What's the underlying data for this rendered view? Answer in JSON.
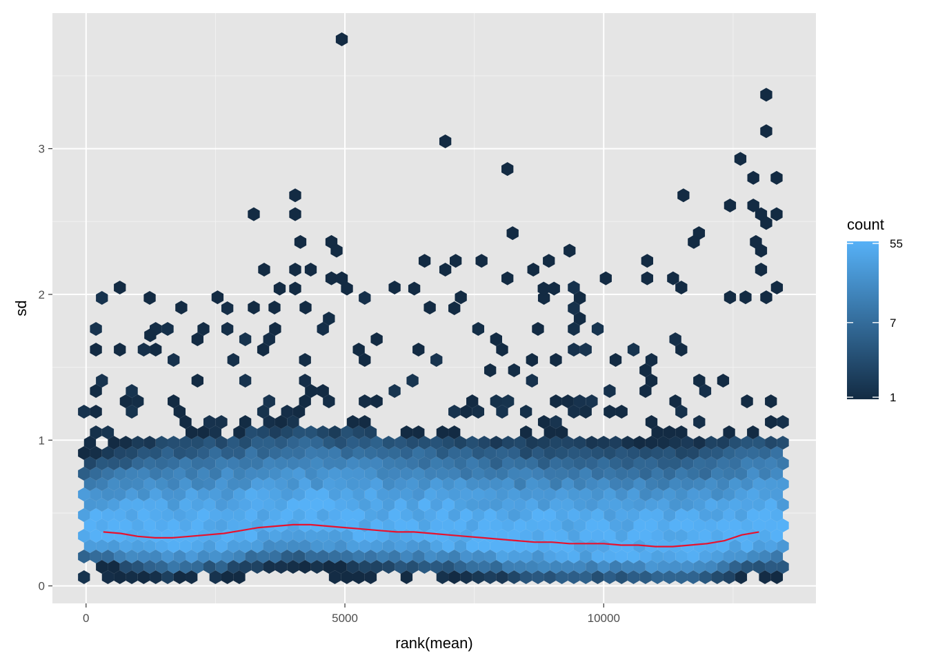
{
  "chart_data": {
    "type": "hexbin",
    "title": "",
    "xlabel": "rank(mean)",
    "ylabel": "sd",
    "xlim": [
      -650,
      14100
    ],
    "ylim": [
      -0.12,
      3.93
    ],
    "x_ticks": [
      0,
      5000,
      10000
    ],
    "x_tick_labels": [
      "0",
      "5000",
      "10000"
    ],
    "y_ticks": [
      0,
      1,
      2,
      3
    ],
    "y_tick_labels": [
      "0",
      "1",
      "2",
      "3"
    ],
    "grid": true,
    "background": "#e5e5e5",
    "legend": {
      "title": "count",
      "placement": "right",
      "scale": "log",
      "breaks": [
        1,
        7,
        55
      ],
      "labels": [
        "55",
        "7",
        "1"
      ],
      "low_color": "#132b43",
      "high_color": "#56b1f7"
    },
    "trend_line": {
      "color": "#e8112d",
      "x": [
        333,
        667,
        1000,
        1333,
        1667,
        2000,
        2333,
        2667,
        3000,
        3333,
        3667,
        4000,
        4333,
        4667,
        5000,
        5333,
        5667,
        6000,
        6333,
        6667,
        7000,
        7333,
        7667,
        8000,
        8333,
        8667,
        9000,
        9333,
        9667,
        10000,
        10333,
        10667,
        11000,
        11333,
        11667,
        12000,
        12333,
        12667,
        13000
      ],
      "y": [
        0.37,
        0.36,
        0.34,
        0.33,
        0.33,
        0.34,
        0.35,
        0.36,
        0.38,
        0.4,
        0.41,
        0.42,
        0.42,
        0.41,
        0.4,
        0.39,
        0.38,
        0.37,
        0.37,
        0.36,
        0.35,
        0.34,
        0.33,
        0.32,
        0.31,
        0.3,
        0.3,
        0.29,
        0.29,
        0.29,
        0.28,
        0.28,
        0.27,
        0.27,
        0.28,
        0.29,
        0.31,
        0.35,
        0.37
      ]
    },
    "outlier_hexes": [
      [
        4940,
        3.75,
        1
      ],
      [
        6940,
        3.05,
        1
      ],
      [
        8140,
        2.86,
        1
      ],
      [
        13140,
        3.37,
        1
      ],
      [
        13140,
        3.12,
        1
      ],
      [
        12640,
        2.93,
        1
      ],
      [
        12890,
        2.8,
        1
      ],
      [
        13340,
        2.8,
        1
      ],
      [
        4040,
        2.68,
        1
      ],
      [
        11540,
        2.68,
        1
      ],
      [
        3240,
        2.55,
        1
      ],
      [
        4040,
        2.55,
        1
      ],
      [
        12440,
        2.61,
        1
      ],
      [
        12890,
        2.61,
        1
      ],
      [
        13040,
        2.55,
        1
      ],
      [
        13340,
        2.55,
        1
      ],
      [
        13140,
        2.49,
        1
      ],
      [
        8240,
        2.42,
        1
      ],
      [
        11840,
        2.42,
        1
      ],
      [
        4140,
        2.36,
        1
      ],
      [
        4740,
        2.36,
        1
      ],
      [
        11740,
        2.36,
        1
      ],
      [
        12940,
        2.36,
        1
      ],
      [
        4840,
        2.3,
        1
      ],
      [
        9340,
        2.3,
        1
      ],
      [
        13040,
        2.3,
        1
      ],
      [
        3440,
        2.17,
        1
      ],
      [
        4040,
        2.17,
        1
      ],
      [
        4340,
        2.17,
        1
      ],
      [
        6540,
        2.23,
        1
      ],
      [
        6940,
        2.17,
        1
      ],
      [
        7140,
        2.23,
        1
      ],
      [
        7640,
        2.23,
        1
      ],
      [
        8640,
        2.17,
        1
      ],
      [
        8940,
        2.23,
        1
      ],
      [
        10840,
        2.23,
        1
      ],
      [
        13040,
        2.17,
        1
      ],
      [
        3740,
        2.04,
        1
      ],
      [
        4040,
        2.04,
        1
      ],
      [
        4740,
        2.11,
        1
      ],
      [
        4940,
        2.11,
        1
      ],
      [
        5040,
        2.04,
        1
      ],
      [
        6340,
        2.04,
        1
      ],
      [
        8140,
        2.11,
        1
      ],
      [
        8840,
        2.04,
        1
      ],
      [
        9040,
        2.04,
        1
      ],
      [
        10040,
        2.11,
        1
      ],
      [
        10840,
        2.11,
        1
      ],
      [
        11340,
        2.11,
        1
      ],
      [
        1840,
        1.91,
        1
      ],
      [
        2540,
        1.98,
        1
      ],
      [
        3240,
        1.91,
        1
      ],
      [
        3640,
        1.91,
        1
      ],
      [
        4240,
        1.91,
        1
      ],
      [
        6640,
        1.91,
        1
      ],
      [
        7240,
        1.98,
        1
      ],
      [
        12440,
        1.98,
        1
      ],
      [
        12740,
        1.98,
        1
      ],
      [
        13140,
        1.98,
        1
      ],
      [
        1240,
        1.72,
        1
      ]
    ]
  }
}
